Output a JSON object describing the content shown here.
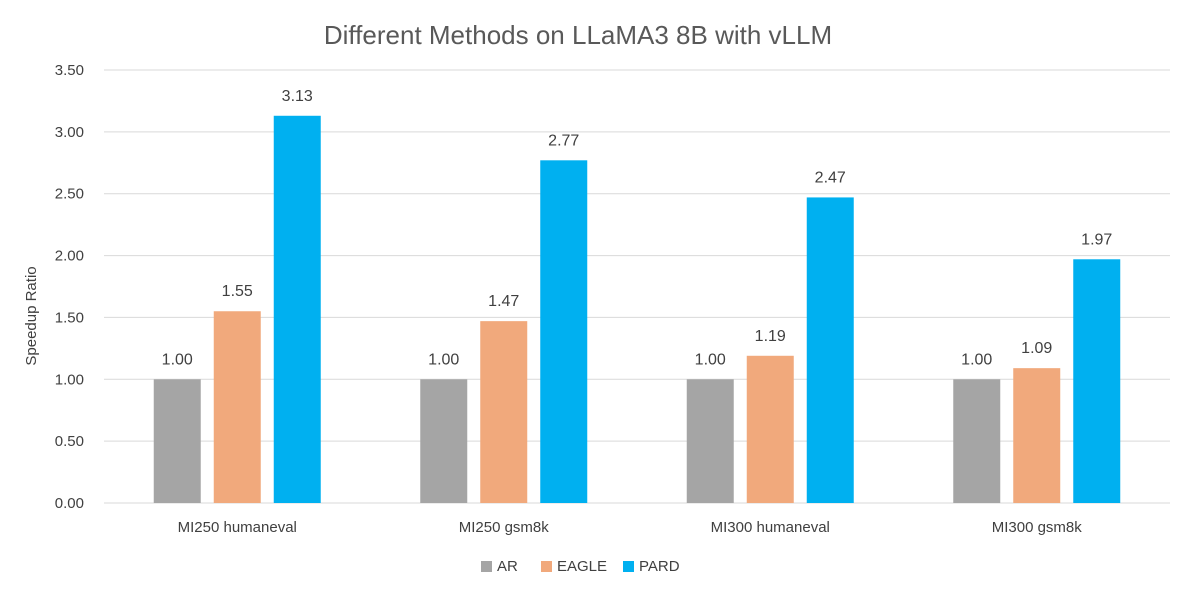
{
  "chart_data": {
    "type": "bar",
    "title": "Different Methods on LLaMA3 8B with vLLM",
    "xlabel": "",
    "ylabel": "Speedup Ratio",
    "ylim": [
      0,
      3.5
    ],
    "yticks": [
      "0.00",
      "0.50",
      "1.00",
      "1.50",
      "2.00",
      "2.50",
      "3.00",
      "3.50"
    ],
    "categories": [
      "MI250 humaneval",
      "MI250 gsm8k",
      "MI300 humaneval",
      "MI300 gsm8k"
    ],
    "series": [
      {
        "name": "AR",
        "color": "#a5a5a5",
        "values": [
          1.0,
          1.0,
          1.0,
          1.0
        ],
        "labels": [
          "1.00",
          "1.00",
          "1.00",
          "1.00"
        ]
      },
      {
        "name": "EAGLE",
        "color": "#f1a97c",
        "values": [
          1.55,
          1.47,
          1.19,
          1.09
        ],
        "labels": [
          "1.55",
          "1.47",
          "1.19",
          "1.09"
        ]
      },
      {
        "name": "PARD",
        "color": "#00b0f0",
        "values": [
          3.13,
          2.77,
          2.47,
          1.97
        ],
        "labels": [
          "3.13",
          "2.77",
          "2.47",
          "1.97"
        ]
      }
    ],
    "grid": true,
    "legend_position": "bottom"
  }
}
